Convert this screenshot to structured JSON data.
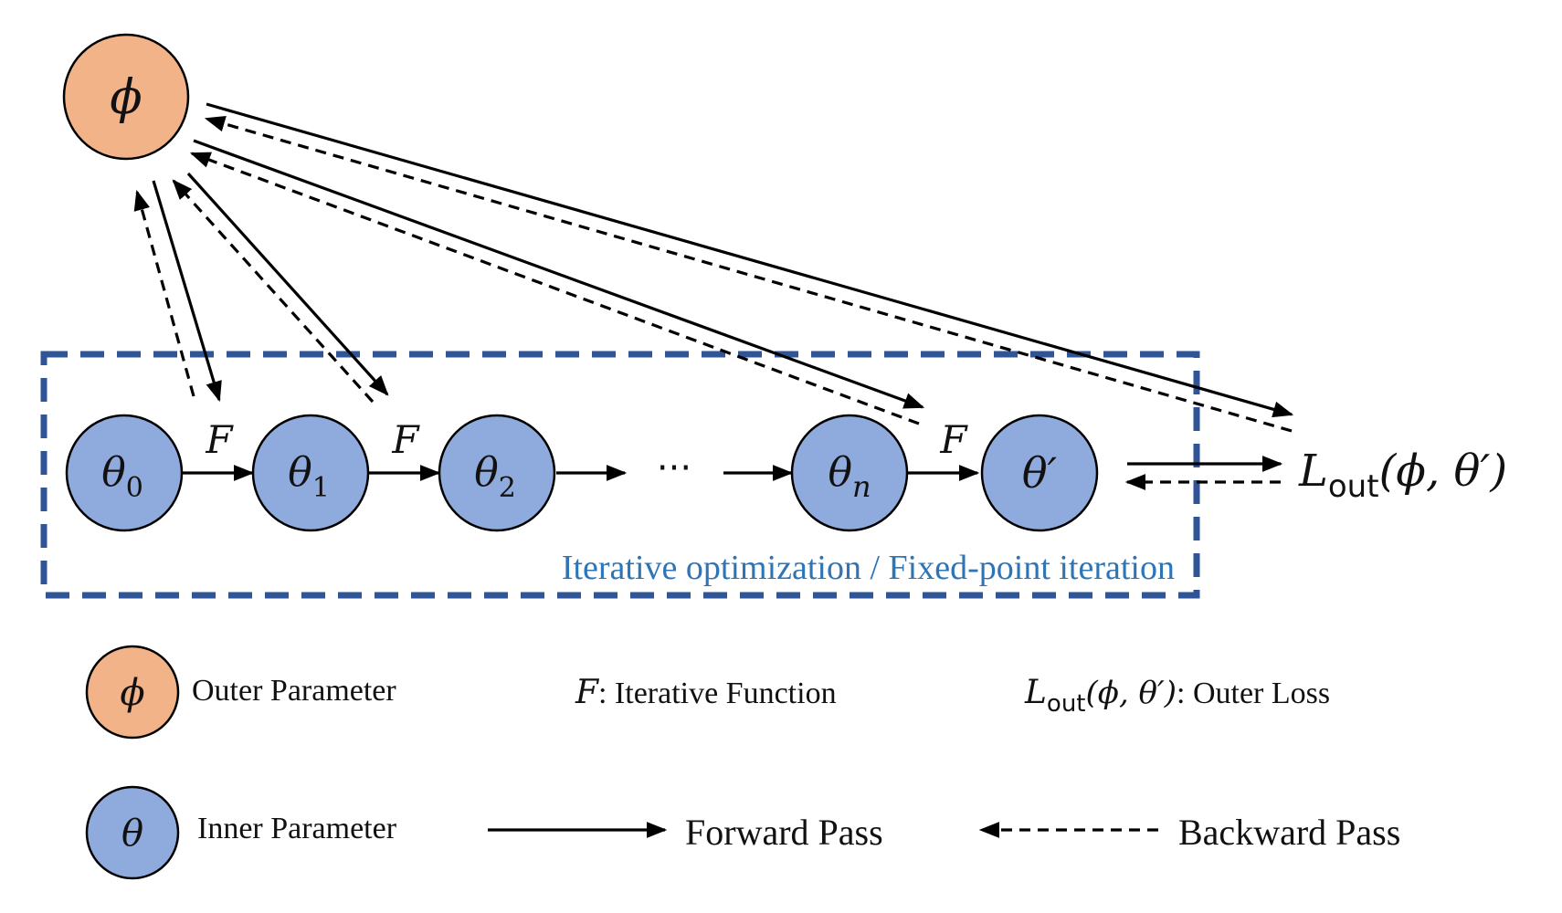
{
  "colors": {
    "outer_fill": "#F2B388",
    "inner_fill": "#8FAADC",
    "box_stroke": "#2F5597",
    "box_caption": "#2E75B6",
    "line": "#000000"
  },
  "nodes": {
    "outer": "ϕ",
    "theta0": {
      "main": "θ",
      "sub": "0"
    },
    "theta1": {
      "main": "θ",
      "sub": "1"
    },
    "theta2": {
      "main": "θ",
      "sub": "2"
    },
    "thetan": {
      "main": "θ",
      "sub": "n"
    },
    "thetaprime": "θ′",
    "ellipsis": "···"
  },
  "function_label": "F",
  "loss": {
    "main": "L",
    "sub": "out",
    "args": "(ϕ, θ′)"
  },
  "box_caption": "Iterative optimization / Fixed-point iteration",
  "legend": {
    "outer_symbol": "ϕ",
    "outer_label": "Outer Parameter",
    "inner_symbol": "θ",
    "inner_label": "Inner Parameter",
    "function_symbol": "F",
    "function_label": ": Iterative Function",
    "loss_main": "L",
    "loss_sub": "out",
    "loss_args": "(ϕ, θ′)",
    "loss_label": ": Outer Loss",
    "forward_label": "Forward Pass",
    "backward_label": "Backward Pass"
  }
}
